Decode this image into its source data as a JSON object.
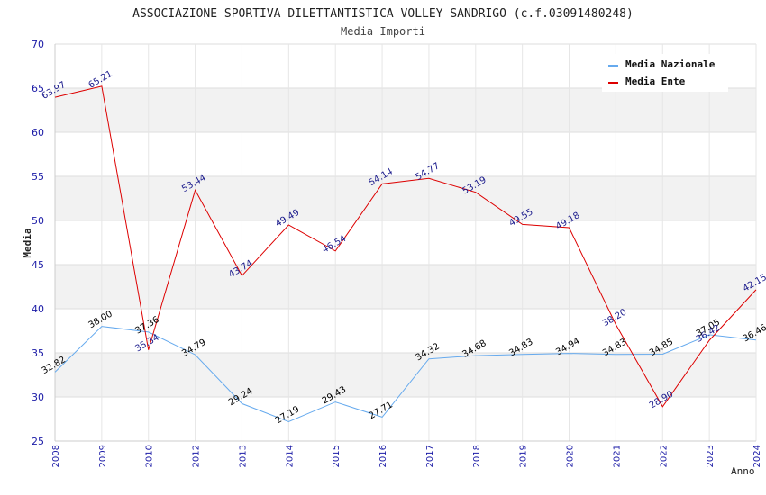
{
  "chart_data": {
    "type": "line",
    "title": "ASSOCIAZIONE SPORTIVA DILETTANTISTICA VOLLEY SANDRIGO (c.f.03091480248)",
    "subtitle": "Media Importi",
    "ylabel": "Media",
    "xlabel": "Anno",
    "ylim": [
      25,
      70
    ],
    "yticks": [
      25,
      30,
      35,
      40,
      45,
      50,
      55,
      60,
      65,
      70
    ],
    "grid": true,
    "legend_position": "top-right",
    "categories": [
      "2008",
      "2009",
      "2010",
      "2012",
      "2013",
      "2014",
      "2015",
      "2016",
      "2017",
      "2018",
      "2019",
      "2020",
      "2021",
      "2022",
      "2023",
      "2024"
    ],
    "series": [
      {
        "name": "Media Nazionale",
        "color": "#66aaee",
        "label_color": "#000000",
        "values": [
          32.82,
          38.0,
          37.36,
          34.79,
          29.24,
          27.19,
          29.43,
          27.71,
          34.32,
          34.68,
          34.83,
          34.94,
          34.83,
          34.85,
          37.05,
          36.46
        ],
        "labels": [
          "32.82",
          "38.00",
          "37.36",
          "34.79",
          "29.24",
          "27.19",
          "29.43",
          "27.71",
          "34.32",
          "34.68",
          "34.83",
          "34.94",
          "34.83",
          "34.85",
          "37.05",
          "36.46"
        ]
      },
      {
        "name": "Media Ente",
        "color": "#dd0000",
        "label_color": "#1a1a8c",
        "values": [
          63.97,
          65.21,
          35.34,
          53.44,
          43.74,
          49.49,
          46.54,
          54.14,
          54.77,
          53.19,
          49.55,
          49.18,
          38.2,
          28.9,
          36.42,
          42.15
        ],
        "labels": [
          "63.97",
          "65.21",
          "35.34",
          "53.44",
          "43.74",
          "49.49",
          "46.54",
          "54.14",
          "54.77",
          "53.19",
          "49.55",
          "49.18",
          "38.20",
          "28.90",
          "36.42",
          "42.15"
        ]
      }
    ]
  }
}
